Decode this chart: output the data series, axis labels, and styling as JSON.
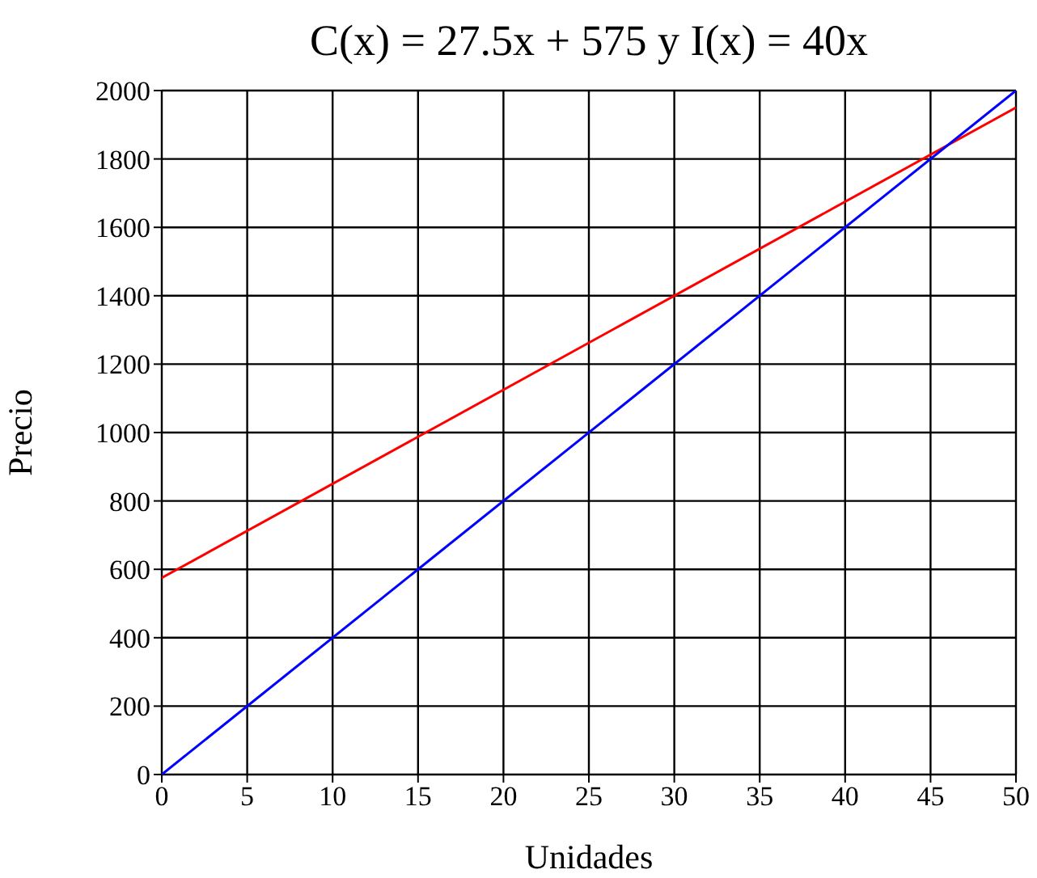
{
  "chart_data": {
    "type": "line",
    "title": "C(x) = 27.5x + 575 y I(x) = 40x",
    "xlabel": "Unidades",
    "ylabel": "Precio",
    "x": [
      0,
      50
    ],
    "series": [
      {
        "color": "#ff0000",
        "values": [
          575,
          1950
        ]
      },
      {
        "color": "#0000ff",
        "values": [
          0,
          2000
        ]
      }
    ],
    "xlim": [
      0,
      50
    ],
    "xticks": [
      0,
      5,
      10,
      15,
      20,
      25,
      30,
      35,
      40,
      45,
      50
    ],
    "ylim": [
      0,
      2000
    ],
    "yticks": [
      0,
      200,
      400,
      600,
      800,
      1000,
      1200,
      1400,
      1600,
      1800,
      2000
    ],
    "grid": true,
    "marker": "none",
    "line_style": "solid"
  }
}
